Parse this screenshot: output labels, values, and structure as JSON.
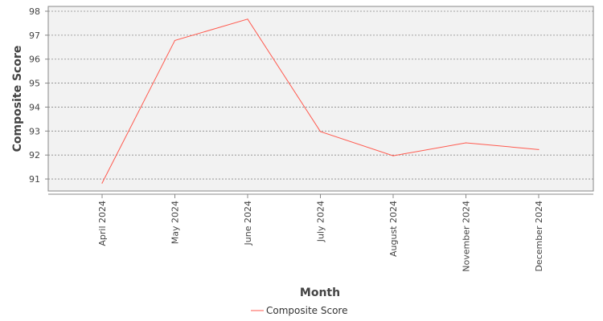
{
  "chart_data": {
    "type": "line",
    "categories": [
      "April 2024",
      "May 2024",
      "June 2024",
      "July 2024",
      "August 2024",
      "November 2024",
      "December 2024"
    ],
    "series": [
      {
        "name": "Composite Score",
        "values": [
          90.83,
          96.78,
          97.67,
          92.98,
          91.97,
          92.51,
          92.23
        ],
        "color": "#ff5a4f"
      }
    ],
    "xlabel": "Month",
    "ylabel": "Composite Score",
    "ylim": [
      90.5,
      98.2
    ],
    "yticks": [
      91,
      92,
      93,
      94,
      95,
      96,
      97,
      98
    ],
    "grid": true,
    "legend_position": "bottom",
    "colors": {
      "plot_background": "#f2f2f2",
      "grid": "#888888",
      "axis": "#888888"
    }
  }
}
